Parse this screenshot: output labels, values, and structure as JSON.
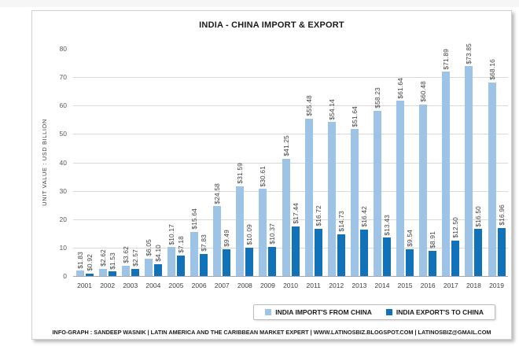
{
  "chart_data": {
    "type": "bar",
    "title": "INDIA - CHINA IMPORT & EXPORT",
    "ylabel": "UNIT VALUE : USD BILLION",
    "ylim": [
      0,
      80
    ],
    "yticks": [
      0,
      10,
      20,
      30,
      40,
      50,
      60,
      70,
      80
    ],
    "gridlines_at": [
      0,
      10,
      20,
      30,
      40,
      50,
      60,
      70
    ],
    "grid": true,
    "value_label_prefix": "$",
    "legend_position": "bottom-right",
    "categories": [
      "2001",
      "2002",
      "2003",
      "2004",
      "2005",
      "2006",
      "2007",
      "2008",
      "2009",
      "2010",
      "2011",
      "2012",
      "2013",
      "2014",
      "2015",
      "2016",
      "2017",
      "2018",
      "2019"
    ],
    "series": [
      {
        "name": "INDIA IMPORT'S FROM CHINA",
        "color": "#9DC3E6",
        "values": [
          1.83,
          2.62,
          3.62,
          6.05,
          10.17,
          15.64,
          24.58,
          31.59,
          30.61,
          41.25,
          55.48,
          54.14,
          51.64,
          58.23,
          61.64,
          60.48,
          71.89,
          73.85,
          68.16
        ]
      },
      {
        "name": "INDIA EXPORT'S TO CHINA",
        "color": "#1272B9",
        "values": [
          0.92,
          1.53,
          2.57,
          4.1,
          7.18,
          7.83,
          9.49,
          10.09,
          10.37,
          17.44,
          16.72,
          14.73,
          16.42,
          13.43,
          9.54,
          8.91,
          12.5,
          16.5,
          16.96
        ]
      }
    ]
  },
  "footer": {
    "credit": "INFO-GRAPH : SANDEEP WASNIK | LATIN AMERICA AND THE CARIBBEAN MARKET EXPERT | WWW.LATINOSBIZ.BLOGSPOT.COM | LATINOSBIZ@GMAIL.COM"
  }
}
